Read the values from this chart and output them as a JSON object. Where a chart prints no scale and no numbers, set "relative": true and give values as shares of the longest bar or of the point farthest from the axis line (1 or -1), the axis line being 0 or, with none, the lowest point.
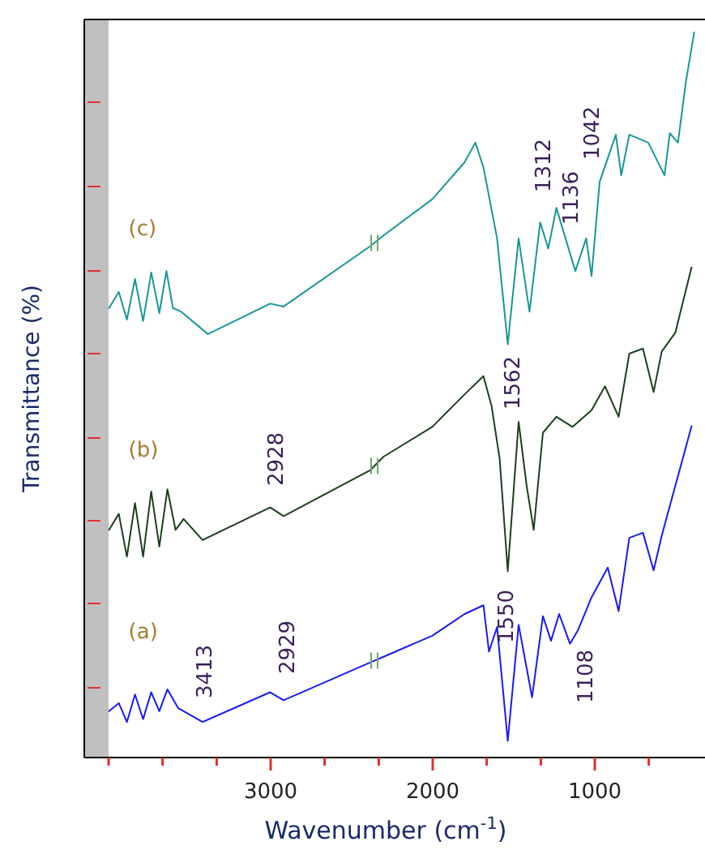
{
  "chart_data": {
    "type": "line",
    "relative": true,
    "xlabel": "Wavenumber (cm$^{-1}$)",
    "ylabel": "Transmittance (%)",
    "xlim": [
      4150,
      330
    ],
    "xticks": [
      {
        "value": 4000,
        "label": null
      },
      {
        "value": 3667,
        "label": null
      },
      {
        "value": 3333,
        "label": null
      },
      3000,
      {
        "value": 2667,
        "label": null
      },
      {
        "value": 2333,
        "label": null
      },
      2000,
      {
        "value": 1667,
        "label": null
      },
      {
        "value": 1333,
        "label": null
      },
      1000,
      {
        "value": 667,
        "label": null
      }
    ],
    "bands": [
      {
        "axis": "x",
        "from": 4150,
        "to": 4000,
        "color": "#c0c0c0"
      }
    ],
    "grid": false,
    "marker": "none",
    "line_style": "solid",
    "series": [
      {
        "name": "(c)",
        "color": "#1a9696",
        "x": [
          3997,
          3937,
          3887,
          3837,
          3787,
          3737,
          3687,
          3643,
          3603,
          3553,
          3387,
          3003,
          2920,
          2387,
          2303,
          2003,
          1803,
          1737,
          1687,
          1603,
          1537,
          1470,
          1403,
          1337,
          1287,
          1237,
          1120,
          1053,
          1020,
          970,
          870,
          837,
          787,
          670,
          570,
          537,
          487,
          437,
          387
        ],
        "values": [
          0.62,
          0.642,
          0.604,
          0.66,
          0.602,
          0.669,
          0.613,
          0.671,
          0.62,
          0.615,
          0.584,
          0.626,
          0.622,
          0.705,
          0.72,
          0.77,
          0.821,
          0.848,
          0.814,
          0.716,
          0.57,
          0.716,
          0.615,
          0.738,
          0.702,
          0.758,
          0.671,
          0.716,
          0.664,
          0.794,
          0.859,
          0.803,
          0.859,
          0.848,
          0.803,
          0.861,
          0.848,
          0.933,
          1
        ]
      },
      {
        "name": "(b)",
        "color": "#1c3f1c",
        "x": [
          3997,
          3937,
          3887,
          3837,
          3787,
          3737,
          3687,
          3637,
          3587,
          3537,
          3420,
          3003,
          2920,
          2387,
          2303,
          2003,
          1803,
          1687,
          1637,
          1587,
          1537,
          1470,
          1420,
          1377,
          1320,
          1237,
          1137,
          1020,
          937,
          853,
          787,
          703,
          637,
          587,
          503,
          403
        ],
        "values": [
          0.314,
          0.336,
          0.277,
          0.351,
          0.277,
          0.367,
          0.291,
          0.37,
          0.314,
          0.329,
          0.3,
          0.345,
          0.333,
          0.396,
          0.415,
          0.456,
          0.501,
          0.526,
          0.485,
          0.412,
          0.257,
          0.463,
          0.374,
          0.314,
          0.448,
          0.47,
          0.456,
          0.479,
          0.512,
          0.47,
          0.557,
          0.564,
          0.504,
          0.56,
          0.586,
          0.676
        ]
      },
      {
        "name": "(a)",
        "color": "#1a1af0",
        "x": [
          3997,
          3937,
          3887,
          3837,
          3787,
          3737,
          3687,
          3637,
          3570,
          3420,
          3003,
          2920,
          2387,
          2303,
          2003,
          1803,
          1687,
          1653,
          1603,
          1537,
          1470,
          1387,
          1320,
          1270,
          1220,
          1153,
          1103,
          1020,
          920,
          853,
          787,
          703,
          637,
          587,
          403
        ],
        "values": [
          0.064,
          0.075,
          0.049,
          0.087,
          0.053,
          0.09,
          0.064,
          0.094,
          0.068,
          0.049,
          0.09,
          0.079,
          0.131,
          0.139,
          0.168,
          0.198,
          0.21,
          0.146,
          0.18,
          0.023,
          0.183,
          0.083,
          0.195,
          0.161,
          0.198,
          0.157,
          0.176,
          0.221,
          0.262,
          0.202,
          0.303,
          0.31,
          0.258,
          0.306,
          0.457
        ]
      }
    ],
    "annotations": [
      "1312",
      "1136",
      "1042",
      "1562",
      "2928",
      "1550",
      "2929",
      "3413",
      "1108"
    ]
  }
}
